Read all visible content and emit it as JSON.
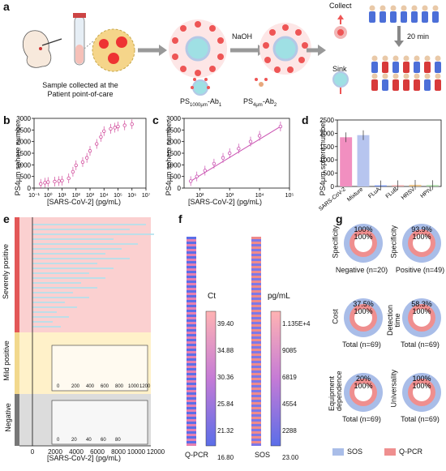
{
  "panels": {
    "a": {
      "label": "a",
      "sample_text_line1": "Sample collected at the",
      "sample_text_line2": "Patient point-of-care",
      "naoh": "NaOH",
      "collect": "Collect",
      "sink": "Sink",
      "time": "20 min",
      "ps1_label": "PS",
      "ps1_sub": "1000μm",
      "ps1_suffix": "-Ab",
      "ps1_suffix_sub": "1",
      "ps2_label": "PS",
      "ps2_sub": "4μm",
      "ps2_suffix": "-Ab",
      "ps2_suffix_sub": "2"
    },
    "b": {
      "label": "b",
      "ylabel": "PS4μm sphere number",
      "xlabel": "[SARS-CoV-2] (pg/mL)"
    },
    "c": {
      "label": "c",
      "ylabel": "PS4μm sphere number",
      "xlabel": "[SARS-CoV-2] (pg/mL)"
    },
    "d": {
      "label": "d",
      "ylabel": "PS4μm sphere number"
    },
    "e": {
      "label": "e",
      "groups": [
        "Severely positive",
        "Mild positive",
        "Negative"
      ],
      "xlabel": "[SARS-CoV-2] (pg/mL)"
    },
    "f": {
      "label": "f",
      "left_title": "Ct",
      "right_title": "pg/mL",
      "left_xlabel": "Q-PCR",
      "right_xlabel": "SOS",
      "left_ticks": [
        "39.40",
        "34.88",
        "30.36",
        "25.84",
        "21.32",
        "16.80"
      ],
      "right_ticks": [
        "1.135E+4",
        "9085",
        "6819",
        "4554",
        "2288",
        "23.00"
      ]
    },
    "g": {
      "label": "g",
      "legend": [
        {
          "name": "SOS",
          "color": "#a9bde8"
        },
        {
          "name": "Q-PCR",
          "color": "#ef8f8f"
        }
      ],
      "donuts": [
        {
          "side": "Specificity",
          "bottom": "Negative (n=20)",
          "top_pct": "100%",
          "inner_pct": "100%"
        },
        {
          "side": "Specificity",
          "bottom": "Positive (n=49)",
          "top_pct": "93.9%",
          "inner_pct": "100%"
        },
        {
          "side": "Cost",
          "bottom": "Total (n=69)",
          "top_pct": "37.5%",
          "inner_pct": "100%"
        },
        {
          "side": "Detection time",
          "bottom": "Total (n=69)",
          "top_pct": "58.3%",
          "inner_pct": "100%"
        },
        {
          "side": "Equipment dependence",
          "bottom": "Total (n=69)",
          "top_pct": "20%",
          "inner_pct": "100%"
        },
        {
          "side": "Universality",
          "bottom": "Total (n=69)",
          "top_pct": "100%",
          "inner_pct": "100%"
        }
      ]
    }
  },
  "chart_data": [
    {
      "type": "scatter",
      "panel": "b",
      "xlabel": "[SARS-CoV-2] (pg/mL)",
      "ylabel": "PS4μm sphere number",
      "x_log": true,
      "xlim": [
        0.1,
        10000000
      ],
      "ylim": [
        0,
        3000
      ],
      "y_ticks": [
        0,
        500,
        1000,
        1500,
        2000,
        2500,
        3000
      ],
      "x_ticks": [
        "10^-1",
        "10^0",
        "10^1",
        "10^2",
        "10^3",
        "10^4",
        "10^5",
        "10^6",
        "10^7"
      ],
      "points": [
        {
          "x": 0.3,
          "y": 180
        },
        {
          "x": 0.6,
          "y": 230
        },
        {
          "x": 1,
          "y": 260
        },
        {
          "x": 3,
          "y": 280
        },
        {
          "x": 6,
          "y": 300
        },
        {
          "x": 10,
          "y": 320
        },
        {
          "x": 30,
          "y": 420
        },
        {
          "x": 60,
          "y": 700
        },
        {
          "x": 100,
          "y": 980
        },
        {
          "x": 300,
          "y": 1120
        },
        {
          "x": 600,
          "y": 1300
        },
        {
          "x": 1000,
          "y": 1600
        },
        {
          "x": 3000,
          "y": 1900
        },
        {
          "x": 6000,
          "y": 2200
        },
        {
          "x": 10000,
          "y": 2450
        },
        {
          "x": 30000,
          "y": 2550
        },
        {
          "x": 60000,
          "y": 2600
        },
        {
          "x": 100000,
          "y": 2650
        },
        {
          "x": 300000,
          "y": 2700
        },
        {
          "x": 1000000,
          "y": 2750
        }
      ]
    },
    {
      "type": "scatter",
      "panel": "c",
      "xlabel": "[SARS-CoV-2] (pg/mL)",
      "ylabel": "PS4μm sphere number",
      "x_log": true,
      "xlim": [
        30,
        100000
      ],
      "ylim": [
        0,
        3000
      ],
      "y_ticks": [
        0,
        500,
        1000,
        1500,
        2000,
        2500,
        3000
      ],
      "x_ticks": [
        "10^2",
        "10^3",
        "10^4",
        "10^5"
      ],
      "points": [
        {
          "x": 50,
          "y": 300
        },
        {
          "x": 80,
          "y": 500
        },
        {
          "x": 150,
          "y": 750
        },
        {
          "x": 300,
          "y": 1050
        },
        {
          "x": 600,
          "y": 1300
        },
        {
          "x": 1000,
          "y": 1500
        },
        {
          "x": 2000,
          "y": 1700
        },
        {
          "x": 5000,
          "y": 2000
        },
        {
          "x": 10000,
          "y": 2250
        },
        {
          "x": 50000,
          "y": 2650
        }
      ]
    },
    {
      "type": "bar",
      "panel": "d",
      "ylabel": "PS4μm sphere number",
      "categories": [
        "SARS-CoV-2",
        "Mixture",
        "FLuA",
        "FLuB",
        "HRSV",
        "HPIV"
      ],
      "values": [
        1850,
        1930,
        40,
        45,
        60,
        50
      ],
      "ylim": [
        0,
        2500
      ],
      "y_ticks": [
        0,
        500,
        1000,
        1500,
        2000,
        2500
      ],
      "colors": [
        "#f18fc0",
        "#b7c5ef",
        "#6e8ee8",
        "#e7a6a6",
        "#e8c28a",
        "#a7d7a3"
      ]
    }
  ]
}
